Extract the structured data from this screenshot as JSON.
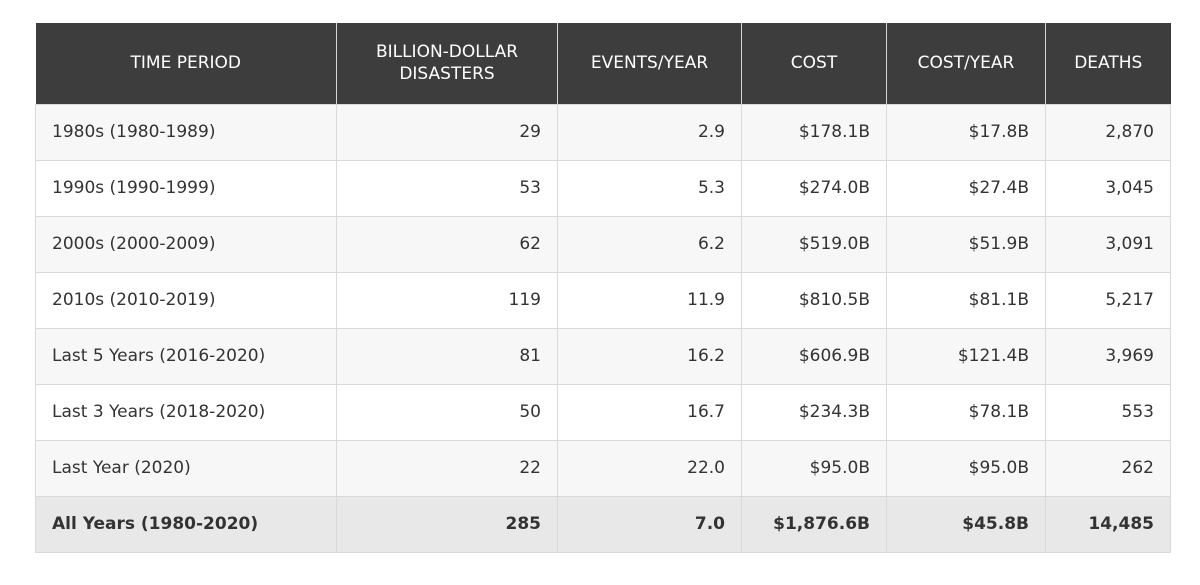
{
  "chart_data": {
    "type": "table",
    "columns": [
      "TIME PERIOD",
      "BILLION-DOLLAR DISASTERS",
      "EVENTS/YEAR",
      "COST",
      "COST/YEAR",
      "DEATHS"
    ],
    "rows": [
      [
        "1980s (1980-1989)",
        "29",
        "2.9",
        "$178.1B",
        "$17.8B",
        "2,870"
      ],
      [
        "1990s (1990-1999)",
        "53",
        "5.3",
        "$274.0B",
        "$27.4B",
        "3,045"
      ],
      [
        "2000s (2000-2009)",
        "62",
        "6.2",
        "$519.0B",
        "$51.9B",
        "3,091"
      ],
      [
        "2010s (2010-2019)",
        "119",
        "11.9",
        "$810.5B",
        "$81.1B",
        "5,217"
      ],
      [
        "Last 5 Years (2016-2020)",
        "81",
        "16.2",
        "$606.9B",
        "$121.4B",
        "3,969"
      ],
      [
        "Last 3 Years (2018-2020)",
        "50",
        "16.7",
        "$234.3B",
        "$78.1B",
        "553"
      ],
      [
        "Last Year (2020)",
        "22",
        "22.0",
        "$95.0B",
        "$95.0B",
        "262"
      ],
      [
        "All Years (1980-2020)",
        "285",
        "7.0",
        "$1,876.6B",
        "$45.8B",
        "14,485"
      ]
    ]
  },
  "colors": {
    "header_bg": "#3d3d3d",
    "header_text": "#ffffff",
    "row_odd": "#f7f7f7",
    "row_even": "#ffffff",
    "total_row": "#e8e8e8",
    "border": "#d9d9d9"
  }
}
